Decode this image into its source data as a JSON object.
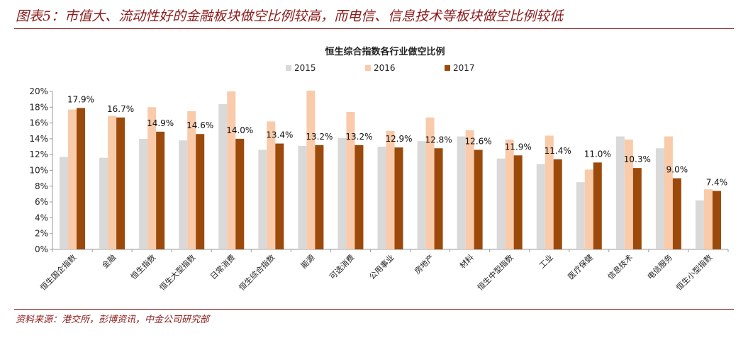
{
  "figure": {
    "title": "图表5：市值大、流动性好的金融板块做空比例较高，而电信、信息技术等板块做空比例较低",
    "source": "资料来源：港交所，彭博资讯，中金公司研究部"
  },
  "chart_data": {
    "type": "bar",
    "title": "恒生综合指数各行业做空比例",
    "xlabel": "",
    "ylabel": "",
    "ylim": [
      0,
      0.2
    ],
    "yticks": [
      "0%",
      "2%",
      "4%",
      "6%",
      "8%",
      "10%",
      "12%",
      "14%",
      "16%",
      "18%",
      "20%"
    ],
    "legend_position": "top-center",
    "grid": false,
    "categories": [
      "恒生国企指数",
      "金融",
      "恒生指数",
      "恒生大型指数",
      "日常消费",
      "恒生综合指数",
      "能源",
      "可选消费",
      "公用事业",
      "房地产",
      "材料",
      "恒生中型指数",
      "工业",
      "医疗保健",
      "信息技术",
      "电信服务",
      "恒生小型指数"
    ],
    "series": [
      {
        "name": "2015",
        "color": "#D9D9D9",
        "values": [
          0.117,
          0.116,
          0.14,
          0.138,
          0.184,
          0.126,
          0.131,
          0.141,
          0.13,
          0.137,
          0.143,
          0.115,
          0.108,
          0.085,
          0.143,
          0.128,
          0.062
        ]
      },
      {
        "name": "2016",
        "color": "#F9CBAA",
        "values": [
          0.177,
          0.169,
          0.18,
          0.175,
          0.2,
          0.162,
          0.201,
          0.174,
          0.15,
          0.167,
          0.151,
          0.139,
          0.144,
          0.101,
          0.139,
          0.143,
          0.076
        ]
      },
      {
        "name": "2017",
        "color": "#9C4A0B",
        "values": [
          0.179,
          0.167,
          0.149,
          0.146,
          0.14,
          0.134,
          0.132,
          0.132,
          0.129,
          0.128,
          0.126,
          0.119,
          0.114,
          0.11,
          0.103,
          0.09,
          0.074
        ]
      }
    ],
    "data_labels": [
      "17.9%",
      "16.7%",
      "14.9%",
      "14.6%",
      "14.0%",
      "13.4%",
      "13.2%",
      "13.2%",
      "12.9%",
      "12.8%",
      "12.6%",
      "11.9%",
      "11.4%",
      "11.0%",
      "10.3%",
      "9.0%",
      "7.4%"
    ]
  }
}
